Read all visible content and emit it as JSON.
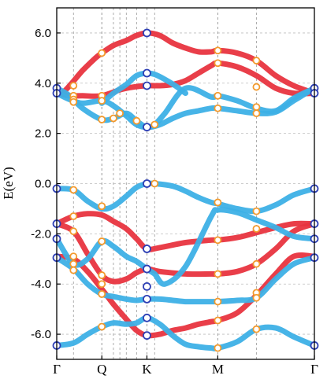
{
  "chart_data": {
    "type": "line",
    "title": "",
    "xlabel": "",
    "ylabel": "E(eV)",
    "ylim": [
      -7.0,
      7.0
    ],
    "y_ticks": [
      {
        "value": 6.0,
        "label": "6.0"
      },
      {
        "value": 4.0,
        "label": "4.0"
      },
      {
        "value": 2.0,
        "label": "2.0"
      },
      {
        "value": 0.0,
        "label": "0.0"
      },
      {
        "value": -2.0,
        "label": "-2.0"
      },
      {
        "value": -4.0,
        "label": "-4.0"
      },
      {
        "value": -6.0,
        "label": "-6.0"
      }
    ],
    "xlim": [
      0.0,
      1.0
    ],
    "kpoints": [
      {
        "label": "Γ",
        "x": 0.0
      },
      {
        "label": "Q",
        "x": 0.175
      },
      {
        "label": "K",
        "x": 0.35
      },
      {
        "label": "M",
        "x": 0.625
      },
      {
        "label": "Γ",
        "x": 1.0
      }
    ],
    "vertical_gridlines_x": [
      0.065,
      0.175,
      0.22,
      0.245,
      0.27,
      0.31,
      0.35,
      0.38,
      0.625,
      0.775
    ],
    "grid": true,
    "colors": {
      "red_band": "#e8343f",
      "blue_band": "#3db0e6",
      "gamma_k_marker": "#2d3fb5",
      "crossing_marker": "#f39a2e"
    },
    "series": [
      {
        "color": "red",
        "x": [
          0.0,
          0.02,
          0.05,
          0.1,
          0.15,
          0.175,
          0.22,
          0.27,
          0.31,
          0.35,
          0.4,
          0.45,
          0.5,
          0.55,
          0.6,
          0.625,
          0.7,
          0.775,
          0.85,
          0.92,
          1.0
        ],
        "y": [
          3.6,
          3.6,
          3.9,
          4.5,
          5.0,
          5.2,
          5.5,
          5.7,
          5.9,
          6.0,
          5.9,
          5.6,
          5.4,
          5.25,
          5.25,
          5.3,
          5.2,
          4.9,
          4.3,
          3.9,
          3.6
        ]
      },
      {
        "color": "red",
        "x": [
          0.0,
          0.05,
          0.1,
          0.175,
          0.25,
          0.3,
          0.35,
          0.4,
          0.45,
          0.5,
          0.55,
          0.6,
          0.625,
          0.7,
          0.775,
          0.85,
          0.92,
          1.0
        ],
        "y": [
          3.6,
          3.5,
          3.5,
          3.5,
          3.75,
          3.85,
          3.9,
          3.9,
          3.95,
          4.1,
          4.4,
          4.7,
          4.8,
          4.65,
          4.3,
          3.8,
          3.6,
          3.6
        ]
      },
      {
        "color": "blue",
        "x": [
          0.0,
          0.05,
          0.1,
          0.175,
          0.22,
          0.27,
          0.31,
          0.35,
          0.4,
          0.45,
          0.5,
          0.55,
          0.6,
          0.625,
          0.7,
          0.775,
          0.85,
          0.92,
          1.0
        ],
        "y": [
          3.8,
          3.5,
          3.0,
          2.55,
          2.6,
          2.8,
          2.5,
          2.25,
          2.35,
          2.6,
          2.8,
          2.9,
          3.0,
          3.0,
          2.9,
          2.8,
          2.85,
          3.3,
          3.8
        ]
      },
      {
        "color": "blue",
        "x": [
          0.0,
          0.05,
          0.1,
          0.175,
          0.22,
          0.27,
          0.31,
          0.35,
          0.38,
          0.42,
          0.5,
          0.6,
          0.625,
          0.7,
          0.775,
          0.85,
          0.92,
          1.0
        ],
        "y": [
          3.6,
          3.35,
          3.2,
          3.3,
          3.1,
          2.7,
          2.35,
          2.25,
          2.35,
          2.8,
          3.8,
          3.45,
          3.5,
          3.3,
          3.0,
          2.9,
          3.4,
          3.8
        ]
      },
      {
        "color": "blue",
        "x": [
          0.175,
          0.22,
          0.27,
          0.31,
          0.35,
          0.38,
          0.42,
          0.46,
          0.5
        ],
        "y": [
          3.2,
          3.6,
          3.95,
          4.3,
          4.4,
          4.35,
          4.15,
          3.9,
          3.6
        ]
      },
      {
        "color": "blue",
        "x": [
          0.0,
          0.065,
          0.12,
          0.175,
          0.22,
          0.27,
          0.31,
          0.35,
          0.38,
          0.45,
          0.5,
          0.55,
          0.6,
          0.625,
          0.7,
          0.775,
          0.85,
          0.92,
          1.0
        ],
        "y": [
          -0.2,
          -0.25,
          -0.7,
          -1.0,
          -0.9,
          -0.5,
          -0.15,
          0.0,
          0.0,
          -0.1,
          -0.3,
          -0.55,
          -0.75,
          -0.8,
          -1.0,
          -1.1,
          -0.85,
          -0.45,
          -0.2
        ]
      },
      {
        "color": "red",
        "x": [
          0.0,
          0.065,
          0.12,
          0.175,
          0.22,
          0.27,
          0.31,
          0.35,
          0.4,
          0.5,
          0.6,
          0.625,
          0.7,
          0.775,
          0.85,
          0.92,
          1.0
        ],
        "y": [
          -1.6,
          -1.3,
          -1.2,
          -1.25,
          -1.5,
          -1.8,
          -2.2,
          -2.6,
          -2.55,
          -2.35,
          -2.25,
          -2.25,
          -2.15,
          -1.95,
          -1.75,
          -1.6,
          -1.6
        ]
      },
      {
        "color": "red",
        "x": [
          0.0,
          0.065,
          0.12,
          0.175,
          0.22,
          0.27,
          0.31,
          0.35,
          0.4,
          0.5,
          0.6,
          0.625,
          0.7,
          0.775,
          0.85,
          0.92,
          1.0
        ],
        "y": [
          -1.6,
          -1.9,
          -2.8,
          -3.65,
          -3.9,
          -3.8,
          -3.55,
          -3.4,
          -3.5,
          -3.6,
          -3.6,
          -3.6,
          -3.5,
          -3.2,
          -2.6,
          -1.9,
          -1.6
        ]
      },
      {
        "color": "blue",
        "x": [
          0.0,
          0.065,
          0.12,
          0.175,
          0.22,
          0.27,
          0.31,
          0.35,
          0.38,
          0.42,
          0.5,
          0.6,
          0.625,
          0.7,
          0.775,
          0.85,
          0.92,
          1.0
        ],
        "y": [
          -2.2,
          -3.2,
          -3.0,
          -2.3,
          -2.5,
          -2.9,
          -3.1,
          -3.4,
          -3.6,
          -4.0,
          -3.3,
          -1.3,
          -1.05,
          -1.15,
          -1.45,
          -1.75,
          -2.1,
          -2.2
        ]
      },
      {
        "color": "blue",
        "x": [
          0.0,
          0.065,
          0.12,
          0.175,
          0.22,
          0.27,
          0.31,
          0.35,
          0.4,
          0.45,
          0.5,
          0.55,
          0.6,
          0.625,
          0.7,
          0.775,
          0.85,
          0.92,
          1.0
        ],
        "y": [
          -2.95,
          -3.4,
          -4.0,
          -4.4,
          -4.5,
          -4.6,
          -4.65,
          -4.6,
          -4.6,
          -4.65,
          -4.7,
          -4.7,
          -4.7,
          -4.7,
          -4.65,
          -4.55,
          -3.8,
          -3.2,
          -2.95
        ]
      },
      {
        "color": "red",
        "x": [
          0.0,
          0.065,
          0.12,
          0.175,
          0.22,
          0.27,
          0.31,
          0.35,
          0.4,
          0.45,
          0.5,
          0.55,
          0.6,
          0.625,
          0.7,
          0.775,
          0.85,
          0.92,
          1.0
        ],
        "y": [
          -2.9,
          -3.0,
          -3.5,
          -4.2,
          -4.8,
          -5.4,
          -5.85,
          -6.05,
          -6.0,
          -5.85,
          -5.75,
          -5.6,
          -5.5,
          -5.45,
          -5.15,
          -4.45,
          -3.6,
          -2.9,
          -2.9
        ]
      },
      {
        "color": "blue",
        "x": [
          0.0,
          0.065,
          0.12,
          0.175,
          0.22,
          0.27,
          0.31,
          0.35,
          0.4,
          0.45,
          0.5,
          0.55,
          0.6,
          0.625,
          0.7,
          0.775,
          0.85,
          0.92,
          1.0
        ],
        "y": [
          -6.45,
          -6.35,
          -6.0,
          -5.7,
          -5.55,
          -5.6,
          -5.55,
          -5.35,
          -5.6,
          -6.05,
          -6.4,
          -6.5,
          -6.55,
          -6.55,
          -6.3,
          -5.8,
          -5.75,
          -6.1,
          -6.45
        ]
      }
    ],
    "gamma_k_markers": [
      {
        "x": 0.0,
        "y": 3.8
      },
      {
        "x": 0.0,
        "y": 3.6
      },
      {
        "x": 0.0,
        "y": -0.2
      },
      {
        "x": 0.0,
        "y": -1.6
      },
      {
        "x": 0.0,
        "y": -2.2
      },
      {
        "x": 0.0,
        "y": -2.95
      },
      {
        "x": 0.0,
        "y": -6.45
      },
      {
        "x": 0.35,
        "y": 6.0
      },
      {
        "x": 0.35,
        "y": 4.4
      },
      {
        "x": 0.35,
        "y": 3.9
      },
      {
        "x": 0.35,
        "y": 2.25
      },
      {
        "x": 0.35,
        "y": 0.0
      },
      {
        "x": 0.35,
        "y": -2.6
      },
      {
        "x": 0.35,
        "y": -3.4
      },
      {
        "x": 0.35,
        "y": -4.1
      },
      {
        "x": 0.35,
        "y": -4.6
      },
      {
        "x": 0.35,
        "y": -5.35
      },
      {
        "x": 0.35,
        "y": -6.05
      },
      {
        "x": 1.0,
        "y": 3.8
      },
      {
        "x": 1.0,
        "y": 3.6
      },
      {
        "x": 1.0,
        "y": -0.2
      },
      {
        "x": 1.0,
        "y": -1.6
      },
      {
        "x": 1.0,
        "y": -2.2
      },
      {
        "x": 1.0,
        "y": -2.95
      },
      {
        "x": 1.0,
        "y": -6.45
      }
    ],
    "crossing_markers": [
      {
        "x": 0.065,
        "y": 3.9
      },
      {
        "x": 0.065,
        "y": 3.5
      },
      {
        "x": 0.065,
        "y": 3.35
      },
      {
        "x": 0.065,
        "y": 3.25
      },
      {
        "x": 0.175,
        "y": 5.2
      },
      {
        "x": 0.175,
        "y": 3.5
      },
      {
        "x": 0.175,
        "y": 3.3
      },
      {
        "x": 0.175,
        "y": 2.55
      },
      {
        "x": 0.22,
        "y": 2.6
      },
      {
        "x": 0.245,
        "y": 2.8
      },
      {
        "x": 0.31,
        "y": 2.5
      },
      {
        "x": 0.38,
        "y": 2.35
      },
      {
        "x": 0.625,
        "y": 5.3
      },
      {
        "x": 0.625,
        "y": 4.8
      },
      {
        "x": 0.625,
        "y": 3.5
      },
      {
        "x": 0.625,
        "y": 3.0
      },
      {
        "x": 0.775,
        "y": 4.9
      },
      {
        "x": 0.775,
        "y": 3.85
      },
      {
        "x": 0.775,
        "y": 3.05
      },
      {
        "x": 0.775,
        "y": 2.8
      },
      {
        "x": 0.065,
        "y": -0.25
      },
      {
        "x": 0.175,
        "y": -0.9
      },
      {
        "x": 0.38,
        "y": 0.0
      },
      {
        "x": 0.625,
        "y": -0.75
      },
      {
        "x": 0.775,
        "y": -1.1
      },
      {
        "x": 0.065,
        "y": -1.3
      },
      {
        "x": 0.065,
        "y": -1.9
      },
      {
        "x": 0.065,
        "y": -2.9
      },
      {
        "x": 0.065,
        "y": -3.2
      },
      {
        "x": 0.065,
        "y": -3.45
      },
      {
        "x": 0.175,
        "y": -2.3
      },
      {
        "x": 0.175,
        "y": -3.65
      },
      {
        "x": 0.175,
        "y": -4.0
      },
      {
        "x": 0.175,
        "y": -4.4
      },
      {
        "x": 0.625,
        "y": -2.25
      },
      {
        "x": 0.625,
        "y": -3.6
      },
      {
        "x": 0.625,
        "y": -4.7
      },
      {
        "x": 0.775,
        "y": -1.8
      },
      {
        "x": 0.775,
        "y": -3.2
      },
      {
        "x": 0.775,
        "y": -4.35
      },
      {
        "x": 0.775,
        "y": -4.55
      },
      {
        "x": 0.175,
        "y": -5.7
      },
      {
        "x": 0.625,
        "y": -5.45
      },
      {
        "x": 0.625,
        "y": -6.55
      },
      {
        "x": 0.775,
        "y": -5.8
      }
    ]
  }
}
